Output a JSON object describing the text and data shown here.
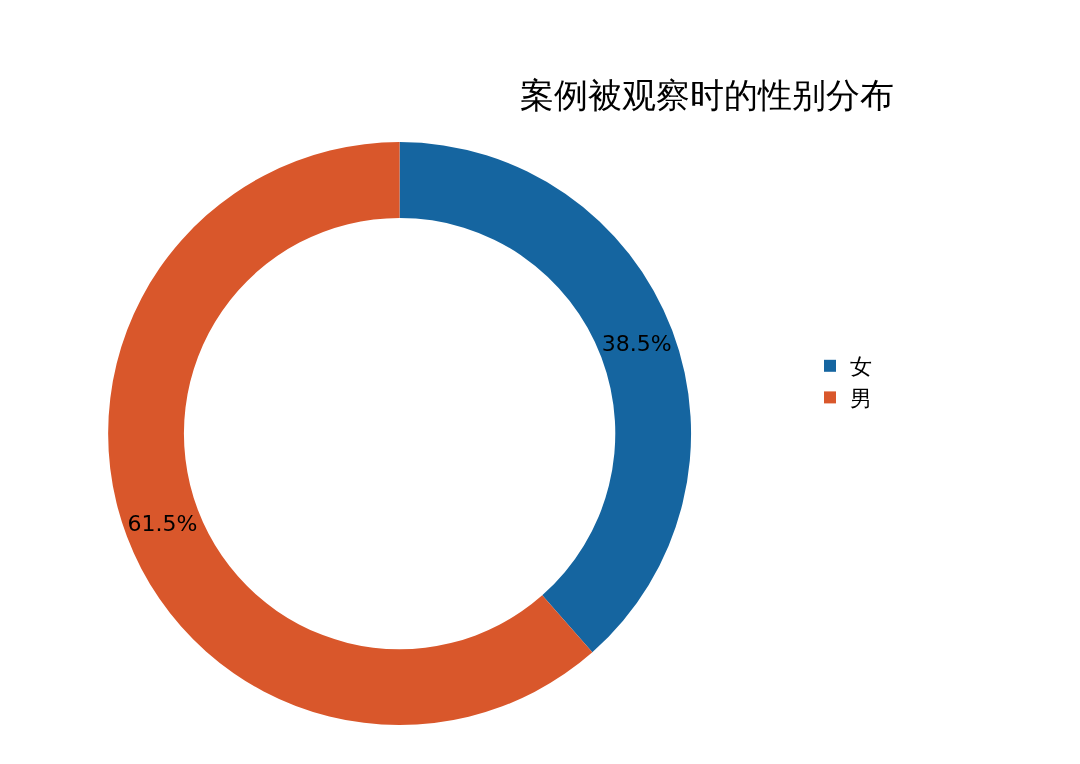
{
  "chart_data": {
    "type": "donut",
    "title": "案例被观察时的性别分布",
    "categories": [
      "女",
      "男"
    ],
    "values": [
      38.5,
      61.5
    ],
    "value_labels": [
      "38.5%",
      "61.5%"
    ],
    "colors": [
      "#1565a0",
      "#d9572b"
    ],
    "legend": "right"
  }
}
